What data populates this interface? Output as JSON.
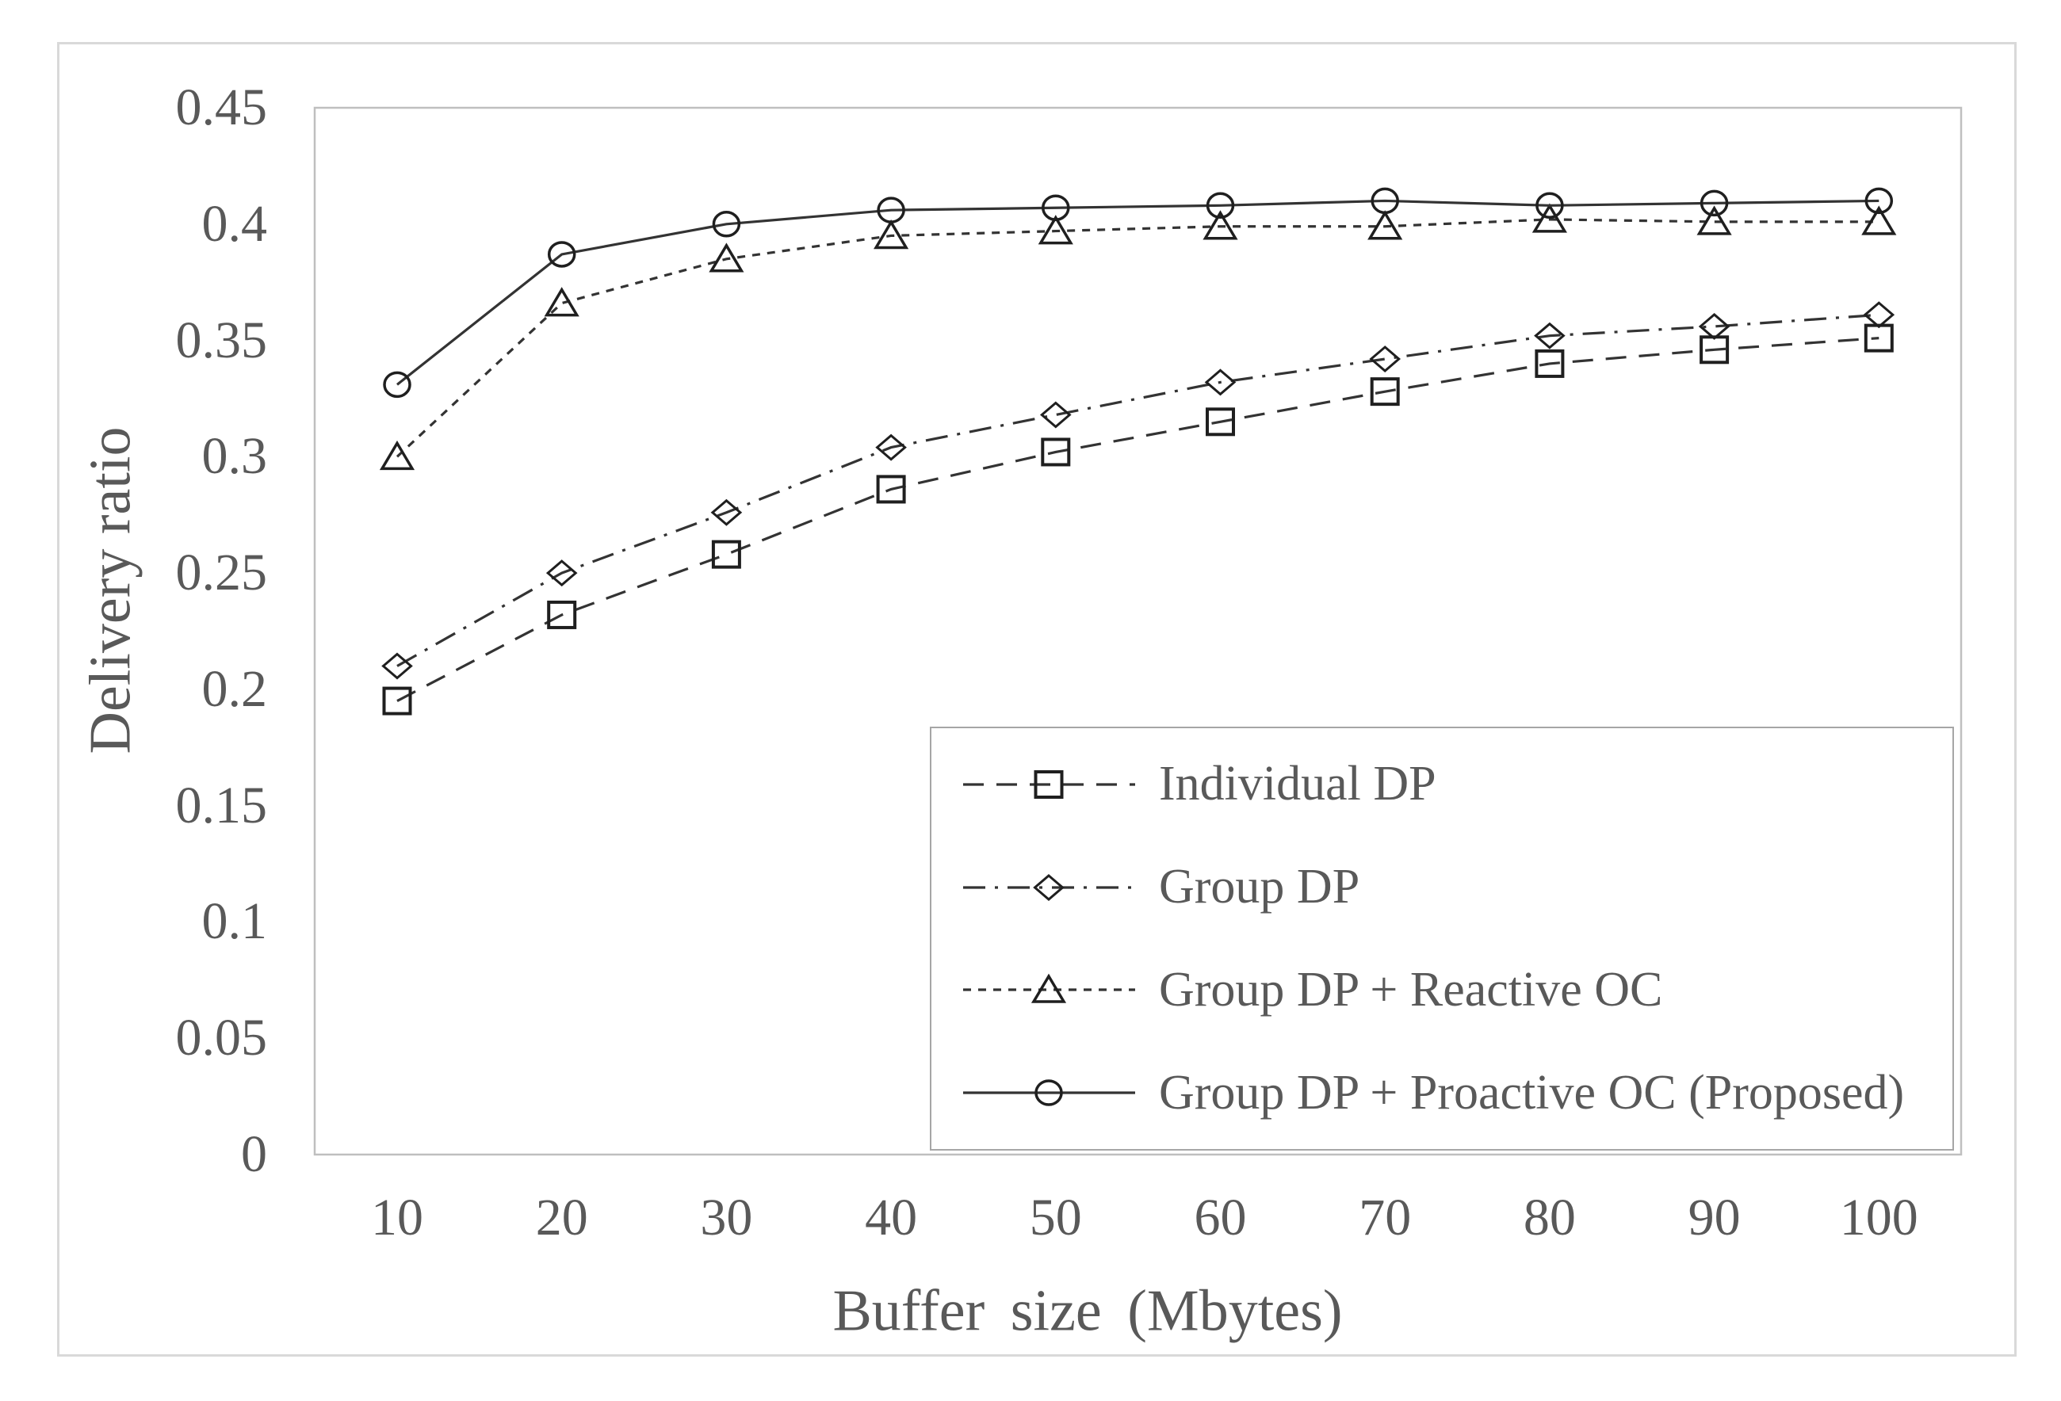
{
  "chart_data": {
    "type": "line",
    "title": "",
    "xlabel": "Buffer size (Mbytes)",
    "ylabel": "Delivery ratio",
    "x": [
      10,
      20,
      30,
      40,
      50,
      60,
      70,
      80,
      90,
      100
    ],
    "x_tick_labels": [
      "10",
      "20",
      "30",
      "40",
      "50",
      "60",
      "70",
      "80",
      "90",
      "100"
    ],
    "y_tick_labels": [
      "0",
      "0.05",
      "0.1",
      "0.15",
      "0.2",
      "0.25",
      "0.3",
      "0.35",
      "0.4",
      "0.45"
    ],
    "ylim": [
      0,
      0.45
    ],
    "ytick_step": 0.05,
    "grid": false,
    "legend_position": "inside-bottom-right",
    "series": [
      {
        "name": "Individual DP",
        "marker": "square",
        "line": "dashed",
        "values": [
          0.195,
          0.232,
          0.258,
          0.286,
          0.302,
          0.315,
          0.328,
          0.34,
          0.346,
          0.351
        ]
      },
      {
        "name": "Group DP",
        "marker": "diamond",
        "line": "dash-dot",
        "values": [
          0.21,
          0.25,
          0.276,
          0.304,
          0.318,
          0.332,
          0.342,
          0.352,
          0.356,
          0.361
        ]
      },
      {
        "name": "Group DP + Reactive OC",
        "marker": "triangle",
        "line": "dotted",
        "values": [
          0.3,
          0.366,
          0.385,
          0.395,
          0.397,
          0.399,
          0.399,
          0.402,
          0.401,
          0.401
        ]
      },
      {
        "name": "Group DP + Proactive OC (Proposed)",
        "marker": "circle",
        "line": "solid",
        "values": [
          0.331,
          0.387,
          0.4,
          0.406,
          0.407,
          0.408,
          0.41,
          0.408,
          0.409,
          0.41
        ]
      }
    ],
    "colors": {
      "text": "#595959",
      "series_line": "#333333",
      "marker_stroke": "#1f1f1f",
      "plot_border": "#bfbfbf",
      "outer_frame": "#d9d9d9",
      "legend_border": "#a6a6a6",
      "background": "#ffffff"
    }
  }
}
